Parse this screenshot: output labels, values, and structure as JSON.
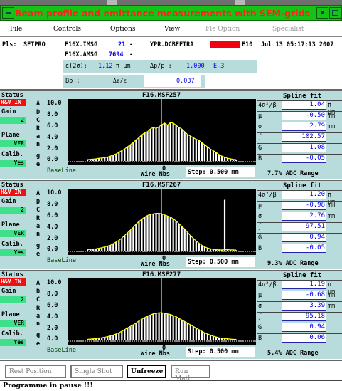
{
  "window": {
    "title": "Beam profile and emittance measurements with SEM-grids"
  },
  "menu": {
    "file": "File",
    "controls": "Controls",
    "options": "Options",
    "view": "View",
    "file_option": "Fle Option",
    "specialist": "Specialist"
  },
  "info": {
    "pls_label": "Pls:",
    "pls_value": "SFTPRO",
    "imsg_name": "F16X.IMSG",
    "imsg_value": "21",
    "imsg_dash": "-",
    "amsg_name": "F16X.AMSG",
    "amsg_value": "7694",
    "amsg_dash": "-",
    "ypr": "YPR.DCBEFTRA",
    "ypr_suffix": "E10",
    "datetime": "Jul 13 05:17:13 2007",
    "eps_label": "ε(2σ):",
    "eps_value": "1.12",
    "eps_unit": "π µm",
    "dpp_label": "Δp/p :",
    "dpp_value": "1.000",
    "dpp_exp": "E-3",
    "bp_label": "Bp :",
    "de_label": "Δε/ε :",
    "de_value": "0.037"
  },
  "labels": {
    "status": "Status",
    "hv": "H&V IN",
    "gain": "Gain",
    "gain_val": "2",
    "plane": "Plane",
    "plane_val": "VER",
    "calib": "Calib.",
    "calib_val": "Yes",
    "spline": "Spline fit",
    "baseline": "BaseLine",
    "wire": "Wire Nbs",
    "step": "Step: 0.500 mm",
    "zero": "0",
    "letters": [
      "A",
      "D",
      "C",
      "R",
      "a",
      "n",
      "g",
      "e"
    ],
    "yticks": [
      "10.0",
      "8.0",
      "6.0",
      "4.0",
      "2.0",
      "0.0"
    ],
    "p_labels": [
      "4σ²/β",
      "µ",
      "σ",
      "∫",
      "G",
      "B"
    ],
    "p_units": [
      "π µm",
      "mm",
      "mm",
      "",
      "",
      ""
    ]
  },
  "panels": [
    {
      "name": "F16.MSF257",
      "values": [
        "1.04",
        "-0.50",
        "2.79",
        "102.57",
        "1.08",
        "-0.05"
      ],
      "adc": "7.7% ADC Range",
      "bars": [
        0.25,
        0.3,
        0.35,
        0.4,
        0.5,
        0.55,
        0.6,
        0.7,
        0.9,
        1.1,
        1.3,
        1.6,
        1.9,
        2.2,
        2.6,
        3.0,
        3.4,
        3.9,
        4.3,
        4.8,
        5.2,
        5.4,
        5.9,
        6.2,
        6.0,
        6.3,
        6.7,
        7.0,
        6.6,
        7.1,
        7.0,
        6.6,
        6.2,
        5.9,
        5.4,
        4.9,
        4.6,
        4.3,
        4.0,
        3.8,
        3.4,
        3.0,
        2.6,
        2.2,
        1.9,
        1.6,
        1.2,
        0.9,
        0.7,
        0.5,
        0.4,
        0.3,
        0.25
      ]
    },
    {
      "name": "F16.MSF267",
      "values": [
        "1.20",
        "-0.98",
        "2.76",
        "97.51",
        "0.94",
        "-0.05"
      ],
      "adc": "9.3% ADC Range",
      "bars": [
        0.2,
        0.25,
        0.3,
        0.35,
        0.45,
        0.55,
        0.7,
        0.85,
        1.0,
        1.3,
        1.6,
        1.9,
        2.3,
        2.8,
        3.3,
        3.8,
        4.3,
        4.9,
        5.4,
        5.8,
        6.2,
        6.5,
        6.7,
        6.8,
        6.9,
        6.9,
        6.8,
        6.6,
        6.4,
        6.2,
        5.9,
        5.5,
        5.0,
        4.5,
        4.0,
        3.4,
        2.8,
        2.3,
        1.8,
        1.4,
        1.0,
        0.7,
        0.5,
        0.35,
        0.25,
        0.2,
        0.15,
        0.15,
        9.4,
        0.2,
        0.15,
        0.15,
        0.1
      ]
    },
    {
      "name": "F16.MSF277",
      "values": [
        "1.19",
        "-0.68",
        "3.39",
        "95.18",
        "0.94",
        "0.06"
      ],
      "adc": "5.4% ADC Range",
      "bars": [
        0.2,
        0.25,
        0.3,
        0.35,
        0.4,
        0.5,
        0.6,
        0.7,
        0.85,
        1.0,
        1.2,
        1.4,
        1.7,
        2.0,
        2.3,
        2.6,
        2.9,
        3.2,
        3.6,
        3.9,
        4.2,
        4.5,
        4.7,
        4.9,
        5.0,
        5.1,
        5.1,
        5.0,
        4.9,
        4.8,
        4.6,
        4.4,
        4.1,
        3.8,
        3.5,
        3.2,
        2.9,
        2.6,
        2.3,
        2.0,
        1.7,
        1.4,
        1.2,
        1.0,
        0.8,
        0.65,
        0.5,
        0.4,
        0.35,
        0.3,
        0.25,
        0.2,
        0.2
      ]
    }
  ],
  "buttons": {
    "rest": "Rest Position",
    "single": "Single Shot",
    "unfreeze": "Unfreeze",
    "run": "Run Math"
  },
  "status": "Programme in pause !!!"
}
